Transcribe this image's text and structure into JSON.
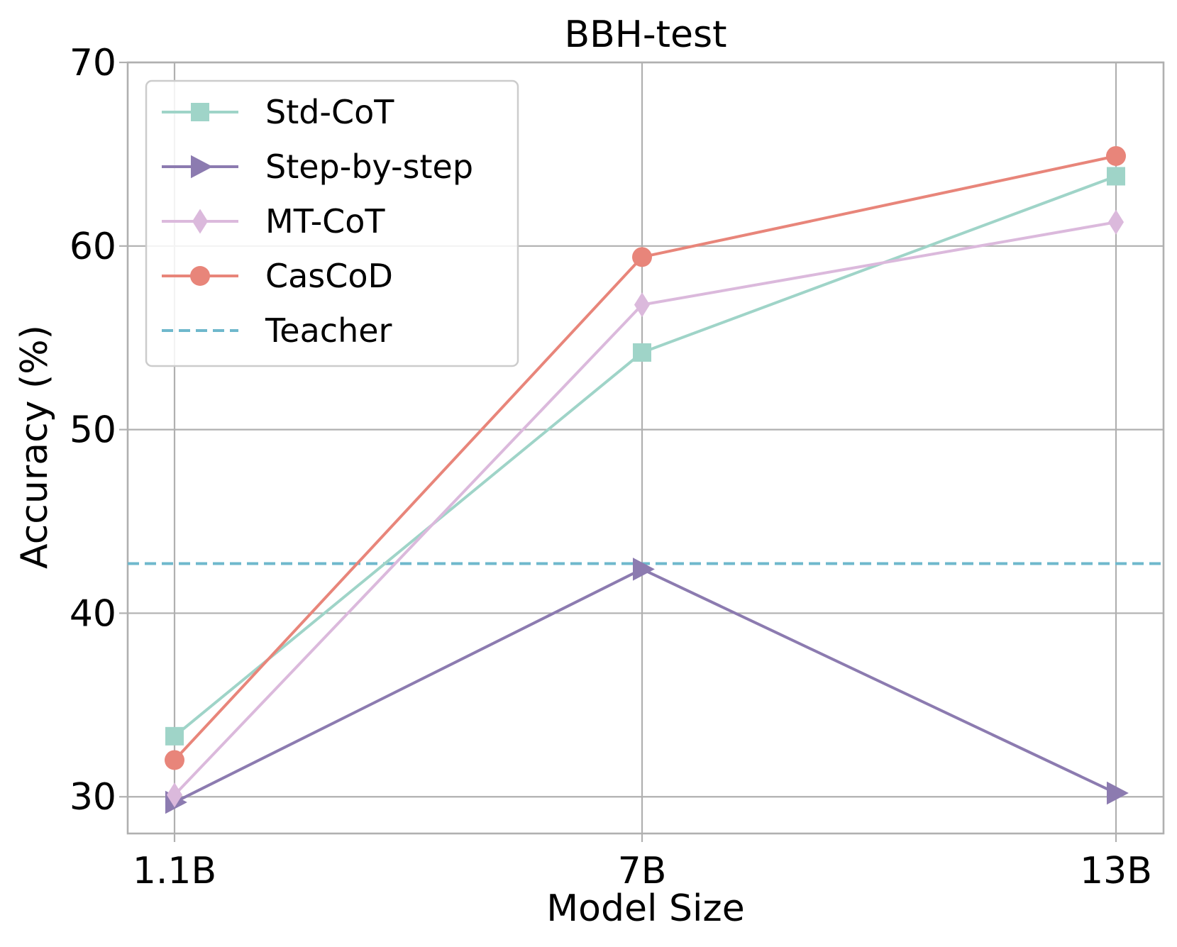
{
  "chart_data": {
    "type": "line",
    "title": "BBH-test",
    "xlabel": "Model Size",
    "ylabel": "Accuracy (%)",
    "categories": [
      "1.1B",
      "7B",
      "13B"
    ],
    "ylim": [
      28,
      70
    ],
    "yticks": [
      30,
      40,
      50,
      60,
      70
    ],
    "grid": true,
    "legend_position": "top-left",
    "series": [
      {
        "name": "Std-CoT",
        "values": [
          33.3,
          54.2,
          63.8
        ],
        "color": "#9fd4c8",
        "marker": "square"
      },
      {
        "name": "Step-by-step",
        "values": [
          29.7,
          42.4,
          30.2
        ],
        "color": "#8c7bb0",
        "marker": "triangle-right"
      },
      {
        "name": "MT-CoT",
        "values": [
          30.1,
          56.8,
          61.3
        ],
        "color": "#dbb9dc",
        "marker": "diamond"
      },
      {
        "name": "CasCoD",
        "values": [
          32.0,
          59.4,
          64.9
        ],
        "color": "#e8857a",
        "marker": "circle"
      }
    ],
    "reference_lines": [
      {
        "name": "Teacher",
        "value": 42.7,
        "color": "#6fb8cc",
        "style": "dashed"
      }
    ]
  }
}
